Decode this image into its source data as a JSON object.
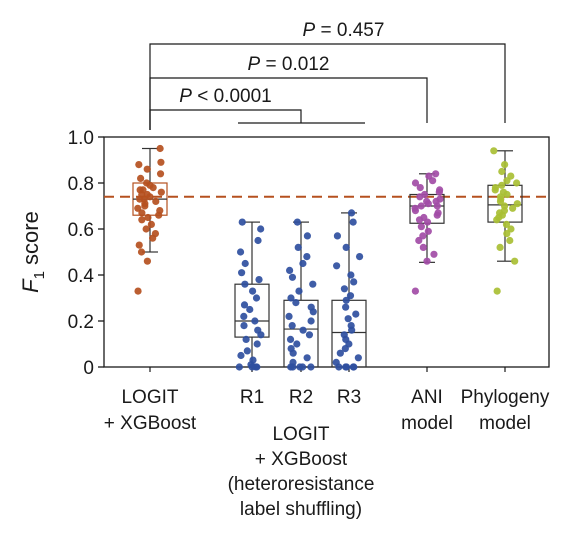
{
  "chart_data": {
    "type": "box",
    "ylabel": "F",
    "ylabel_subscript": "1",
    "ylabel_suffix": "score",
    "ylim": [
      0,
      1.0
    ],
    "yticks": [
      0,
      0.2,
      0.4,
      0.6,
      0.8,
      1.0
    ],
    "ytick_labels": [
      "0",
      "0.2",
      "0.4",
      "0.6",
      "0.8",
      "1.0"
    ],
    "reference_line": {
      "y": 0.74,
      "style": "dashed",
      "color": "#b5501f"
    },
    "groups": [
      {
        "label": [
          "LOGIT",
          "+ XGBoost"
        ],
        "color": "#b5501f",
        "box": {
          "q1": 0.66,
          "median": 0.73,
          "q3": 0.8,
          "whisker_low": 0.5,
          "whisker_high": 0.95
        },
        "points": [
          0.95,
          0.89,
          0.88,
          0.86,
          0.84,
          0.82,
          0.8,
          0.79,
          0.78,
          0.77,
          0.77,
          0.76,
          0.75,
          0.75,
          0.74,
          0.73,
          0.73,
          0.72,
          0.71,
          0.7,
          0.69,
          0.68,
          0.67,
          0.66,
          0.65,
          0.64,
          0.62,
          0.6,
          0.58,
          0.56,
          0.53,
          0.5,
          0.46,
          0.33
        ]
      },
      {
        "label": [
          "R1"
        ],
        "color": "#2f4fa0",
        "box": {
          "q1": 0.13,
          "median": 0.2,
          "q3": 0.36,
          "whisker_low": 0.0,
          "whisker_high": 0.63
        },
        "points": [
          0.63,
          0.6,
          0.55,
          0.5,
          0.45,
          0.41,
          0.38,
          0.36,
          0.33,
          0.3,
          0.27,
          0.25,
          0.22,
          0.2,
          0.18,
          0.16,
          0.14,
          0.12,
          0.1,
          0.07,
          0.05,
          0.03,
          0.01,
          0.0,
          0.0,
          0.0,
          0.0
        ]
      },
      {
        "label": [
          "R2"
        ],
        "color": "#2f4fa0",
        "box": {
          "q1": 0.0,
          "median": 0.165,
          "q3": 0.29,
          "whisker_low": 0.0,
          "whisker_high": 0.63
        },
        "points": [
          0.63,
          0.57,
          0.52,
          0.48,
          0.45,
          0.42,
          0.39,
          0.36,
          0.33,
          0.3,
          0.28,
          0.26,
          0.24,
          0.22,
          0.2,
          0.18,
          0.16,
          0.14,
          0.12,
          0.1,
          0.08,
          0.06,
          0.04,
          0.02,
          0.0,
          0.0,
          0.0,
          0.0,
          0.0
        ]
      },
      {
        "label": [
          "R3"
        ],
        "color": "#2f4fa0",
        "box": {
          "q1": 0.0,
          "median": 0.15,
          "q3": 0.29,
          "whisker_low": 0.0,
          "whisker_high": 0.67
        },
        "points": [
          0.67,
          0.63,
          0.57,
          0.52,
          0.48,
          0.44,
          0.4,
          0.37,
          0.34,
          0.31,
          0.29,
          0.26,
          0.23,
          0.21,
          0.18,
          0.16,
          0.14,
          0.12,
          0.1,
          0.08,
          0.06,
          0.04,
          0.02,
          0.0,
          0.0,
          0.0,
          0.0,
          0.0
        ]
      },
      {
        "label": [
          "ANI",
          "model"
        ],
        "color": "#a24ca6",
        "box": {
          "q1": 0.625,
          "median": 0.7,
          "q3": 0.75,
          "whisker_low": 0.455,
          "whisker_high": 0.84
        },
        "points": [
          0.84,
          0.83,
          0.81,
          0.8,
          0.78,
          0.77,
          0.76,
          0.75,
          0.74,
          0.73,
          0.72,
          0.72,
          0.71,
          0.7,
          0.7,
          0.69,
          0.68,
          0.67,
          0.66,
          0.65,
          0.64,
          0.63,
          0.61,
          0.59,
          0.57,
          0.55,
          0.52,
          0.49,
          0.46,
          0.33
        ]
      },
      {
        "label": [
          "Phylogeny",
          "model"
        ],
        "color": "#a9bf34",
        "box": {
          "q1": 0.63,
          "median": 0.705,
          "q3": 0.79,
          "whisker_low": 0.46,
          "whisker_high": 0.94
        },
        "points": [
          0.94,
          0.88,
          0.85,
          0.83,
          0.81,
          0.8,
          0.79,
          0.78,
          0.77,
          0.76,
          0.75,
          0.74,
          0.73,
          0.72,
          0.71,
          0.7,
          0.69,
          0.68,
          0.67,
          0.66,
          0.65,
          0.64,
          0.62,
          0.6,
          0.58,
          0.55,
          0.52,
          0.46,
          0.33
        ]
      }
    ],
    "shared_group_label": [
      "LOGIT",
      "+ XGBoost",
      "(heteroresistance",
      "label shuffling)"
    ],
    "comparisons": [
      {
        "label": "P < 0.0001",
        "from": "LOGIT + XGBoost",
        "to": "R1–R3"
      },
      {
        "label": "P = 0.012",
        "from": "LOGIT + XGBoost",
        "to": "ANI model"
      },
      {
        "label": "P = 0.457",
        "from": "LOGIT + XGBoost",
        "to": "Phylogeny model"
      }
    ]
  }
}
